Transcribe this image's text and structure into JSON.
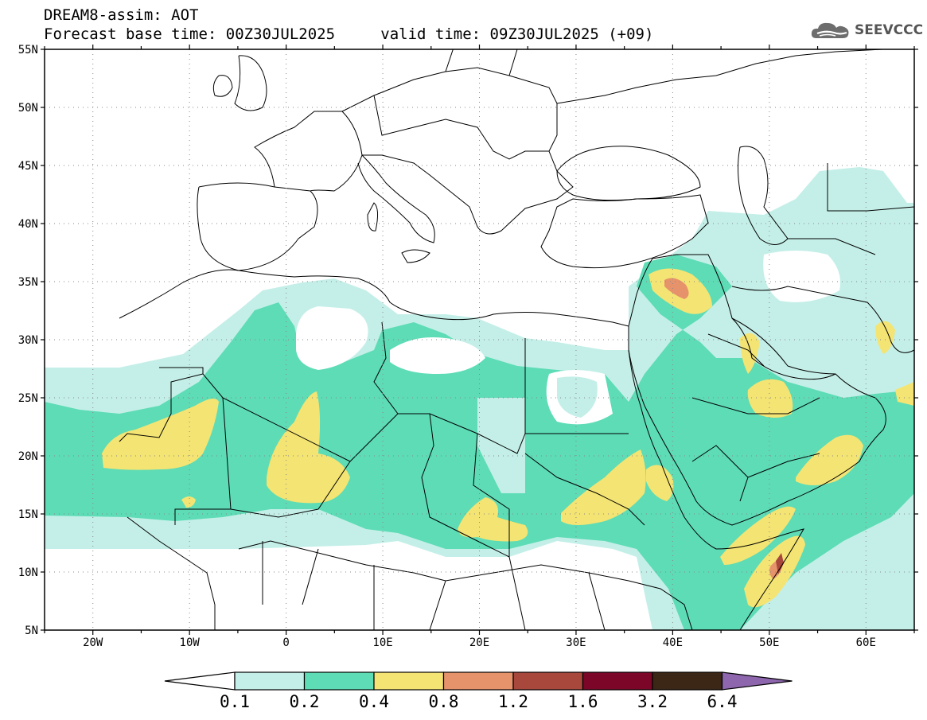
{
  "header": {
    "model_title": "DREAM8-assim: AOT",
    "base_time_label": "Forecast base time: 00Z30JUL2025",
    "valid_time_label": "valid time: 09Z30JUL2025 (+09)"
  },
  "logo": {
    "text": "SEEVCCC",
    "icon": "cloud-logo-icon"
  },
  "map": {
    "lat_labels": [
      "55N",
      "50N",
      "45N",
      "40N",
      "35N",
      "30N",
      "25N",
      "20N",
      "15N",
      "10N",
      "5N"
    ],
    "lon_labels": [
      "20W",
      "10W",
      "0",
      "10E",
      "20E",
      "30E",
      "40E",
      "50E",
      "60E"
    ],
    "lat_values": [
      55,
      50,
      45,
      40,
      35,
      30,
      25,
      20,
      15,
      10,
      5
    ],
    "lon_values": [
      -20,
      -10,
      0,
      10,
      20,
      30,
      40,
      50,
      60
    ]
  },
  "colorbar": {
    "labels": [
      "0.1",
      "0.2",
      "0.4",
      "0.8",
      "1.2",
      "1.6",
      "3.2",
      "6.4"
    ],
    "colors": [
      "#ffffff",
      "#c4efe8",
      "#5ddcb6",
      "#f4e473",
      "#e6936b",
      "#a8473c",
      "#7c0628",
      "#3c2615",
      "#8d66ad"
    ]
  }
}
